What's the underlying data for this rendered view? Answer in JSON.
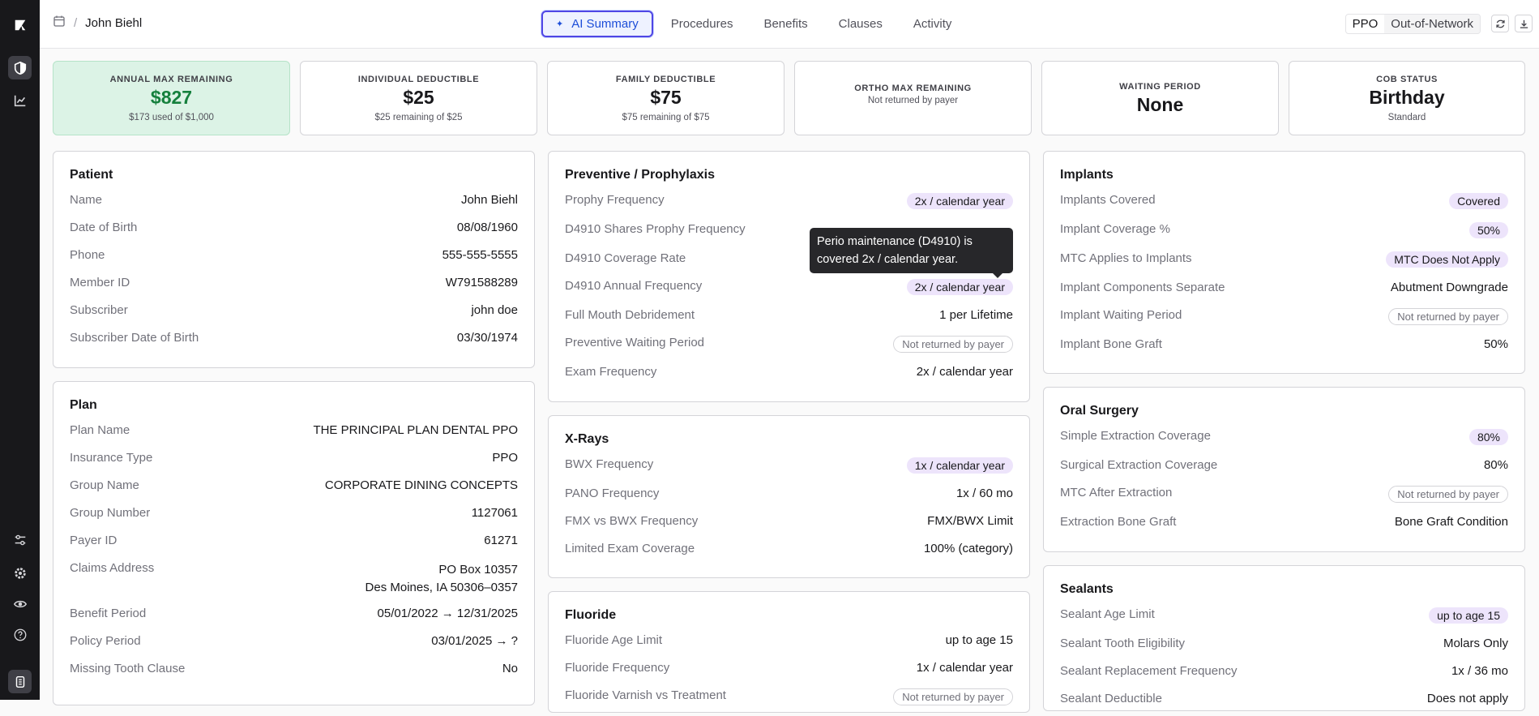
{
  "header": {
    "patient_name": "John Biehl",
    "separator": "/",
    "tabs": [
      {
        "label": "AI Summary",
        "active": true
      },
      {
        "label": "Procedures"
      },
      {
        "label": "Benefits"
      },
      {
        "label": "Clauses"
      },
      {
        "label": "Activity"
      }
    ],
    "plan_type": "PPO",
    "network": "Out-of-Network"
  },
  "stats": [
    {
      "label": "ANNUAL MAX REMAINING",
      "value": "$827",
      "sub": "$173 used of $1,000"
    },
    {
      "label": "INDIVIDUAL DEDUCTIBLE",
      "value": "$25",
      "sub": "$25 remaining of $25"
    },
    {
      "label": "FAMILY DEDUCTIBLE",
      "value": "$75",
      "sub": "$75 remaining of $75"
    },
    {
      "label": "ORTHO MAX REMAINING",
      "value": "",
      "sub": "Not returned by payer"
    },
    {
      "label": "WAITING PERIOD",
      "value": "None",
      "sub": ""
    },
    {
      "label": "COB STATUS",
      "value": "Birthday",
      "sub": "Standard"
    }
  ],
  "patient": {
    "title": "Patient",
    "rows": [
      {
        "k": "Name",
        "v": "John Biehl"
      },
      {
        "k": "Date of Birth",
        "v": "08/08/1960"
      },
      {
        "k": "Phone",
        "v": "555-555-5555"
      },
      {
        "k": "Member ID",
        "v": "W791588289"
      },
      {
        "k": "Subscriber",
        "v": "john doe"
      },
      {
        "k": "Subscriber Date of Birth",
        "v": "03/30/1974"
      }
    ]
  },
  "plan": {
    "title": "Plan",
    "rows": [
      {
        "k": "Plan Name",
        "v": "THE PRINCIPAL PLAN DENTAL PPO"
      },
      {
        "k": "Insurance Type",
        "v": "PPO"
      },
      {
        "k": "Group Name",
        "v": "CORPORATE DINING CONCEPTS"
      },
      {
        "k": "Group Number",
        "v": "1127061"
      },
      {
        "k": "Payer ID",
        "v": "61271"
      },
      {
        "k": "Claims Address",
        "v": "PO Box 10357",
        "v2": "Des Moines, IA 50306–0357"
      },
      {
        "k": "Benefit Period",
        "v": "05/01/2022 → 12/31/2025"
      },
      {
        "k": "Policy Period",
        "v": "03/01/2025 → ?"
      },
      {
        "k": "Missing Tooth Clause",
        "v": "No"
      }
    ]
  },
  "preventive": {
    "title": "Preventive / Prophylaxis",
    "rows": [
      {
        "k": "Prophy Frequency",
        "v": "2x / calendar year"
      },
      {
        "k": "D4910 Shares Prophy Frequency",
        "v": ""
      },
      {
        "k": "D4910 Coverage Rate",
        "v": ""
      },
      {
        "k": "D4910 Annual Frequency",
        "v": "2x / calendar year"
      },
      {
        "k": "Full Mouth Debridement",
        "v": "1 per Lifetime"
      },
      {
        "k": "Preventive Waiting Period",
        "v": "Not returned by payer"
      },
      {
        "k": "Exam Frequency",
        "v": "2x / calendar year"
      }
    ]
  },
  "tooltip": "Perio maintenance (D4910) is covered 2x / calendar year.",
  "xrays": {
    "title": "X-Rays",
    "rows": [
      {
        "k": "BWX Frequency",
        "v": "1x / calendar year"
      },
      {
        "k": "PANO Frequency",
        "v": "1x / 60 mo"
      },
      {
        "k": "FMX vs BWX Frequency",
        "v": "FMX/BWX Limit"
      },
      {
        "k": "Limited Exam Coverage",
        "v": "100% (category)"
      }
    ]
  },
  "fluoride": {
    "title": "Fluoride",
    "rows": [
      {
        "k": "Fluoride Age Limit",
        "v": "up to age 15"
      },
      {
        "k": "Fluoride Frequency",
        "v": "1x / calendar year"
      },
      {
        "k": "Fluoride Varnish vs Treatment",
        "v": "Not returned by payer"
      }
    ]
  },
  "implants": {
    "title": "Implants",
    "rows": [
      {
        "k": "Implants Covered",
        "v": "Covered"
      },
      {
        "k": "Implant Coverage %",
        "v": "50%"
      },
      {
        "k": "MTC Applies to Implants",
        "v": "MTC Does Not Apply"
      },
      {
        "k": "Implant Components Separate",
        "v": "Abutment Downgrade"
      },
      {
        "k": "Implant Waiting Period",
        "v": "Not returned by payer"
      },
      {
        "k": "Implant Bone Graft",
        "v": "50%"
      }
    ]
  },
  "oral_surgery": {
    "title": "Oral Surgery",
    "rows": [
      {
        "k": "Simple Extraction Coverage",
        "v": "80%"
      },
      {
        "k": "Surgical Extraction Coverage",
        "v": "80%"
      },
      {
        "k": "MTC After Extraction",
        "v": "Not returned by payer"
      },
      {
        "k": "Extraction Bone Graft",
        "v": "Bone Graft Condition"
      }
    ]
  },
  "sealants": {
    "title": "Sealants",
    "rows": [
      {
        "k": "Sealant Age Limit",
        "v": "up to age 15"
      },
      {
        "k": "Sealant Tooth Eligibility",
        "v": "Molars Only"
      },
      {
        "k": "Sealant Replacement Frequency",
        "v": "1x / 36 mo"
      },
      {
        "k": "Sealant Deductible",
        "v": "Does not apply"
      }
    ]
  }
}
